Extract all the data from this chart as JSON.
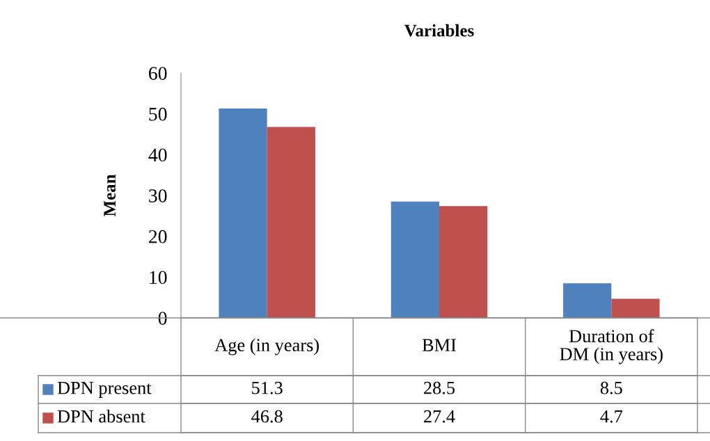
{
  "chart_data": {
    "type": "bar",
    "title": "Variables",
    "ylabel": "Mean",
    "categories": [
      "Age (in years)",
      "BMI",
      "Duration of\nDM (in years)"
    ],
    "series": [
      {
        "name": "DPN present",
        "color": "#4f81bd",
        "values": [
          51.3,
          28.5,
          8.5
        ]
      },
      {
        "name": "DPN absent",
        "color": "#c0504d",
        "values": [
          46.8,
          27.4,
          4.7
        ]
      }
    ],
    "ylim": [
      0,
      60
    ],
    "yticks": [
      0,
      10,
      20,
      30,
      40,
      50,
      60
    ],
    "grid": false,
    "legend": "bottom",
    "data_labels": true
  }
}
